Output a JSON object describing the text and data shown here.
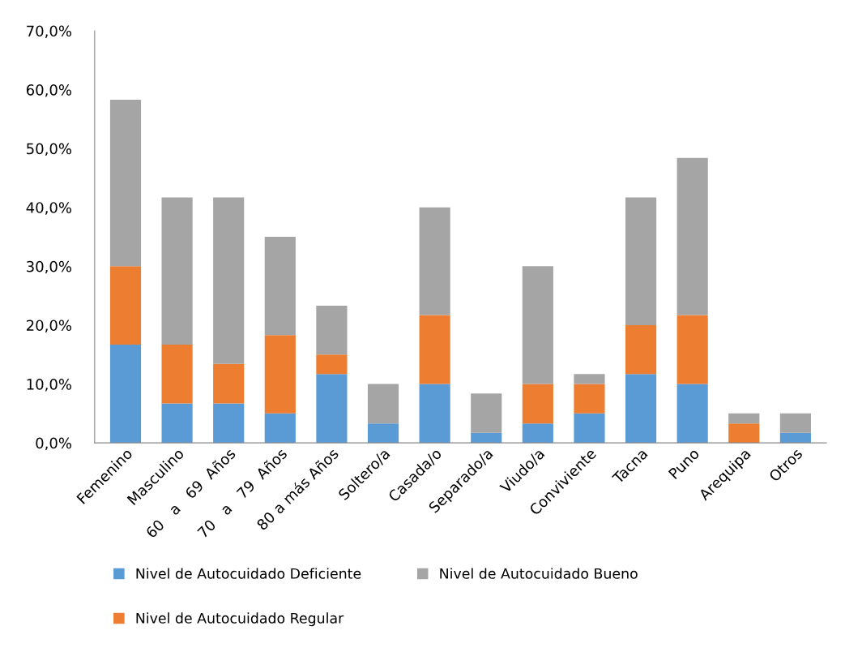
{
  "chart_data": {
    "type": "bar",
    "stacked": true,
    "legend": "bottom",
    "grid": false,
    "categories": [
      "Femenino",
      "Masculino",
      "60   a   69  Años",
      "70   a   79  Años",
      "80 a más Años",
      "Soltero/a",
      "Casada/o",
      "Separado/a",
      "Viudo/a",
      "Conviviente",
      "Tacna",
      "Puno",
      "Arequipa",
      "Otros"
    ],
    "series": [
      {
        "name": "Nivel de Autocuidado Deficiente",
        "color": "#5b9bd5",
        "values": [
          16.7,
          6.7,
          6.7,
          5.0,
          11.7,
          3.3,
          10.0,
          1.7,
          3.3,
          5.0,
          11.7,
          10.0,
          0,
          1.7
        ]
      },
      {
        "name": "Nivel de Autocuidado Regular",
        "color": "#ed7d31",
        "values": [
          13.3,
          10.0,
          6.7,
          13.3,
          3.3,
          0,
          11.7,
          0,
          6.7,
          5.0,
          8.3,
          11.7,
          3.3,
          0
        ]
      },
      {
        "name": "Nivel de Autocuidado Bueno",
        "color": "#a5a5a5",
        "values": [
          28.3,
          25.0,
          28.3,
          16.7,
          8.3,
          6.7,
          18.3,
          6.7,
          20.0,
          1.7,
          21.7,
          26.7,
          1.7,
          3.3
        ]
      }
    ],
    "ylim": [
      0,
      70
    ],
    "yticks": [
      {
        "value": 0,
        "label": "0,0%"
      },
      {
        "value": 10,
        "label": "10,0%"
      },
      {
        "value": 20,
        "label": "20,0%"
      },
      {
        "value": 30,
        "label": "30,0%"
      },
      {
        "value": 40,
        "label": "40,0%"
      },
      {
        "value": 50,
        "label": "50,0%"
      },
      {
        "value": 60,
        "label": "60,0%"
      },
      {
        "value": 70,
        "label": "70,0%"
      }
    ]
  }
}
